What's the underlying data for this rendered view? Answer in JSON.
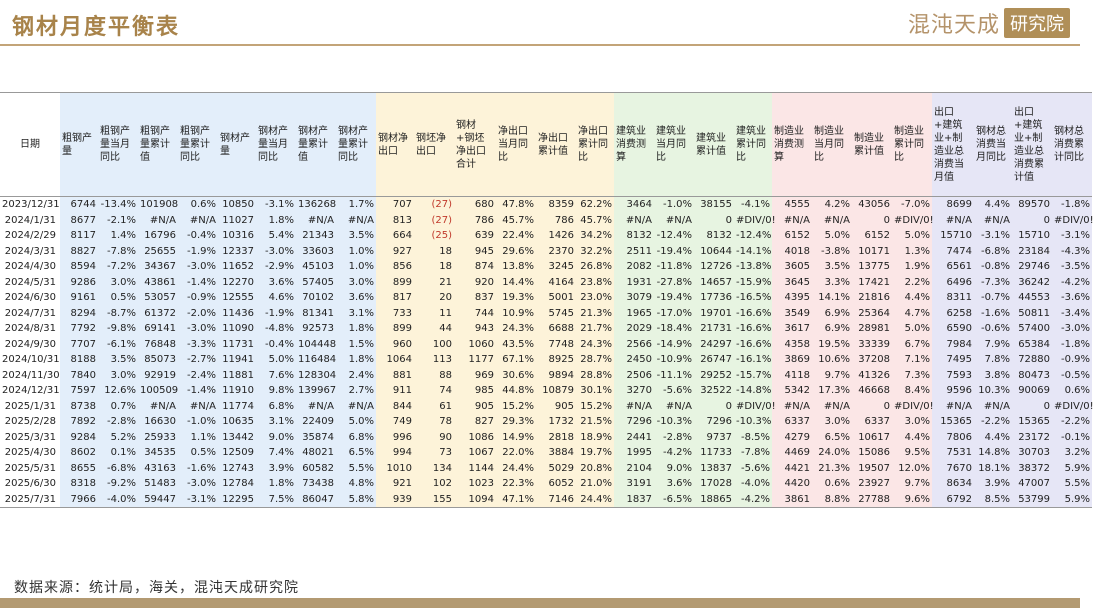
{
  "header": {
    "title": "钢材月度平衡表",
    "logo_text": "混沌天成",
    "logo_box": "研究院"
  },
  "columns": [
    {
      "label": "日期",
      "group": "date"
    },
    {
      "label": "粗钢产量",
      "group": "steel"
    },
    {
      "label": "粗钢产量当月同比",
      "group": "steel"
    },
    {
      "label": "粗钢产量累计值",
      "group": "steel"
    },
    {
      "label": "粗钢产量累计同比",
      "group": "steel"
    },
    {
      "label": "钢材产量",
      "group": "steel"
    },
    {
      "label": "钢材产量当月同比",
      "group": "steel"
    },
    {
      "label": "钢材产量累计值",
      "group": "steel"
    },
    {
      "label": "钢材产量累计同比",
      "group": "steel"
    },
    {
      "label": "钢材净出口",
      "group": "exp"
    },
    {
      "label": "钢坯净出口",
      "group": "exp"
    },
    {
      "label": "钢材+钢坯净出口合计",
      "group": "exp"
    },
    {
      "label": "净出口当月同比",
      "group": "exp"
    },
    {
      "label": "净出口累计值",
      "group": "exp"
    },
    {
      "label": "净出口累计同比",
      "group": "exp"
    },
    {
      "label": "建筑业消费测算",
      "group": "build"
    },
    {
      "label": "建筑业当月同比",
      "group": "build"
    },
    {
      "label": "建筑业累计值",
      "group": "build"
    },
    {
      "label": "建筑业累计同比",
      "group": "build"
    },
    {
      "label": "制造业消费测算",
      "group": "manu"
    },
    {
      "label": "制造业当月同比",
      "group": "manu"
    },
    {
      "label": "制造业累计值",
      "group": "manu"
    },
    {
      "label": "制造业累计同比",
      "group": "manu"
    },
    {
      "label": "出口+建筑业+制造业总消费当月值",
      "group": "tot"
    },
    {
      "label": "钢材总消费当月同比",
      "group": "tot"
    },
    {
      "label": "出口+建筑业+制造业总消费累计值",
      "group": "tot"
    },
    {
      "label": "钢材总消费累计同比",
      "group": "tot"
    }
  ],
  "rows": [
    [
      "2023/12/31",
      "6744",
      "-13.4%",
      "101908",
      "0.6%",
      "10850",
      "-3.1%",
      "136268",
      "1.7%",
      "707",
      "(27)",
      "680",
      "47.8%",
      "8359",
      "62.2%",
      "3464",
      "-1.0%",
      "38155",
      "-4.1%",
      "4555",
      "4.2%",
      "43056",
      "-7.0%",
      "8699",
      "4.4%",
      "89570",
      "-1.8%"
    ],
    [
      "2024/1/31",
      "8677",
      "-2.1%",
      "#N/A",
      "#N/A",
      "11027",
      "1.8%",
      "#N/A",
      "#N/A",
      "813",
      "(27)",
      "786",
      "45.7%",
      "786",
      "45.7%",
      "#N/A",
      "#N/A",
      "0",
      "#DIV/0!",
      "#N/A",
      "#N/A",
      "0",
      "#DIV/0!",
      "#N/A",
      "#N/A",
      "0",
      "#DIV/0!"
    ],
    [
      "2024/2/29",
      "8117",
      "1.4%",
      "16796",
      "-0.4%",
      "10316",
      "5.4%",
      "21343",
      "3.5%",
      "664",
      "(25)",
      "639",
      "22.4%",
      "1426",
      "34.2%",
      "8132",
      "-12.4%",
      "8132",
      "-12.4%",
      "6152",
      "5.0%",
      "6152",
      "5.0%",
      "15710",
      "-3.1%",
      "15710",
      "-3.1%"
    ],
    [
      "2024/3/31",
      "8827",
      "-7.8%",
      "25655",
      "-1.9%",
      "12337",
      "-3.0%",
      "33603",
      "1.0%",
      "927",
      "18",
      "945",
      "29.6%",
      "2370",
      "32.2%",
      "2511",
      "-19.4%",
      "10644",
      "-14.1%",
      "4018",
      "-3.8%",
      "10171",
      "1.3%",
      "7474",
      "-6.8%",
      "23184",
      "-4.3%"
    ],
    [
      "2024/4/30",
      "8594",
      "-7.2%",
      "34367",
      "-3.0%",
      "11652",
      "-2.9%",
      "45103",
      "1.0%",
      "856",
      "18",
      "874",
      "13.8%",
      "3245",
      "26.8%",
      "2082",
      "-11.8%",
      "12726",
      "-13.8%",
      "3605",
      "3.5%",
      "13775",
      "1.9%",
      "6561",
      "-0.8%",
      "29746",
      "-3.5%"
    ],
    [
      "2024/5/31",
      "9286",
      "3.0%",
      "43861",
      "-1.4%",
      "12270",
      "3.6%",
      "57405",
      "3.0%",
      "899",
      "21",
      "920",
      "14.4%",
      "4164",
      "23.8%",
      "1931",
      "-27.8%",
      "14657",
      "-15.9%",
      "3645",
      "3.3%",
      "17421",
      "2.2%",
      "6496",
      "-7.3%",
      "36242",
      "-4.2%"
    ],
    [
      "2024/6/30",
      "9161",
      "0.5%",
      "53057",
      "-0.9%",
      "12555",
      "4.6%",
      "70102",
      "3.6%",
      "817",
      "20",
      "837",
      "19.3%",
      "5001",
      "23.0%",
      "3079",
      "-19.4%",
      "17736",
      "-16.5%",
      "4395",
      "14.1%",
      "21816",
      "4.4%",
      "8311",
      "-0.7%",
      "44553",
      "-3.6%"
    ],
    [
      "2024/7/31",
      "8294",
      "-8.7%",
      "61372",
      "-2.0%",
      "11436",
      "-1.9%",
      "81341",
      "3.1%",
      "733",
      "11",
      "744",
      "10.9%",
      "5745",
      "21.3%",
      "1965",
      "-17.0%",
      "19701",
      "-16.6%",
      "3549",
      "6.9%",
      "25364",
      "4.7%",
      "6258",
      "-1.6%",
      "50811",
      "-3.4%"
    ],
    [
      "2024/8/31",
      "7792",
      "-9.8%",
      "69141",
      "-3.0%",
      "11090",
      "-4.8%",
      "92573",
      "1.8%",
      "899",
      "44",
      "943",
      "24.3%",
      "6688",
      "21.7%",
      "2029",
      "-18.4%",
      "21731",
      "-16.6%",
      "3617",
      "6.9%",
      "28981",
      "5.0%",
      "6590",
      "-0.6%",
      "57400",
      "-3.0%"
    ],
    [
      "2024/9/30",
      "7707",
      "-6.1%",
      "76848",
      "-3.3%",
      "11731",
      "-0.4%",
      "104448",
      "1.5%",
      "960",
      "100",
      "1060",
      "43.5%",
      "7748",
      "24.3%",
      "2566",
      "-14.9%",
      "24297",
      "-16.6%",
      "4358",
      "19.5%",
      "33339",
      "6.7%",
      "7984",
      "7.9%",
      "65384",
      "-1.8%"
    ],
    [
      "2024/10/31",
      "8188",
      "3.5%",
      "85073",
      "-2.7%",
      "11941",
      "5.0%",
      "116484",
      "1.8%",
      "1064",
      "113",
      "1177",
      "67.1%",
      "8925",
      "28.7%",
      "2450",
      "-10.9%",
      "26747",
      "-16.1%",
      "3869",
      "10.6%",
      "37208",
      "7.1%",
      "7495",
      "7.8%",
      "72880",
      "-0.9%"
    ],
    [
      "2024/11/30",
      "7840",
      "3.0%",
      "92919",
      "-2.4%",
      "11881",
      "7.6%",
      "128304",
      "2.4%",
      "881",
      "88",
      "969",
      "30.6%",
      "9894",
      "28.8%",
      "2506",
      "-11.1%",
      "29252",
      "-15.7%",
      "4118",
      "9.7%",
      "41326",
      "7.3%",
      "7593",
      "3.8%",
      "80473",
      "-0.5%"
    ],
    [
      "2024/12/31",
      "7597",
      "12.6%",
      "100509",
      "-1.4%",
      "11910",
      "9.8%",
      "139967",
      "2.7%",
      "911",
      "74",
      "985",
      "44.8%",
      "10879",
      "30.1%",
      "3270",
      "-5.6%",
      "32522",
      "-14.8%",
      "5342",
      "17.3%",
      "46668",
      "8.4%",
      "9596",
      "10.3%",
      "90069",
      "0.6%"
    ],
    [
      "2025/1/31",
      "8738",
      "0.7%",
      "#N/A",
      "#N/A",
      "11774",
      "6.8%",
      "#N/A",
      "#N/A",
      "844",
      "61",
      "905",
      "15.2%",
      "905",
      "15.2%",
      "#N/A",
      "#N/A",
      "0",
      "#DIV/0!",
      "#N/A",
      "#N/A",
      "0",
      "#DIV/0!",
      "#N/A",
      "#N/A",
      "0",
      "#DIV/0!"
    ],
    [
      "2025/2/28",
      "7892",
      "-2.8%",
      "16630",
      "-1.0%",
      "10635",
      "3.1%",
      "22409",
      "5.0%",
      "749",
      "78",
      "827",
      "29.3%",
      "1732",
      "21.5%",
      "7296",
      "-10.3%",
      "7296",
      "-10.3%",
      "6337",
      "3.0%",
      "6337",
      "3.0%",
      "15365",
      "-2.2%",
      "15365",
      "-2.2%"
    ],
    [
      "2025/3/31",
      "9284",
      "5.2%",
      "25933",
      "1.1%",
      "13442",
      "9.0%",
      "35874",
      "6.8%",
      "996",
      "90",
      "1086",
      "14.9%",
      "2818",
      "18.9%",
      "2441",
      "-2.8%",
      "9737",
      "-8.5%",
      "4279",
      "6.5%",
      "10617",
      "4.4%",
      "7806",
      "4.4%",
      "23172",
      "-0.1%"
    ],
    [
      "2025/4/30",
      "8602",
      "0.1%",
      "34535",
      "0.5%",
      "12509",
      "7.4%",
      "48021",
      "6.5%",
      "994",
      "73",
      "1067",
      "22.0%",
      "3884",
      "19.7%",
      "1995",
      "-4.2%",
      "11733",
      "-7.8%",
      "4469",
      "24.0%",
      "15086",
      "9.5%",
      "7531",
      "14.8%",
      "30703",
      "3.2%"
    ],
    [
      "2025/5/31",
      "8655",
      "-6.8%",
      "43163",
      "-1.6%",
      "12743",
      "3.9%",
      "60582",
      "5.5%",
      "1010",
      "134",
      "1144",
      "24.4%",
      "5029",
      "20.8%",
      "2104",
      "9.0%",
      "13837",
      "-5.6%",
      "4421",
      "21.3%",
      "19507",
      "12.0%",
      "7670",
      "18.1%",
      "38372",
      "5.9%"
    ],
    [
      "2025/6/30",
      "8318",
      "-9.2%",
      "51483",
      "-3.0%",
      "12784",
      "1.8%",
      "73438",
      "4.8%",
      "921",
      "102",
      "1023",
      "22.3%",
      "6052",
      "21.0%",
      "3191",
      "3.6%",
      "17028",
      "-4.0%",
      "4420",
      "0.6%",
      "23927",
      "9.7%",
      "8634",
      "3.9%",
      "47007",
      "5.5%"
    ],
    [
      "2025/7/31",
      "7966",
      "-4.0%",
      "59447",
      "-3.1%",
      "12295",
      "7.5%",
      "86047",
      "5.8%",
      "939",
      "155",
      "1094",
      "47.1%",
      "7146",
      "24.4%",
      "1837",
      "-6.5%",
      "18865",
      "-4.2%",
      "3861",
      "8.8%",
      "27788",
      "9.6%",
      "6792",
      "8.5%",
      "53799",
      "5.9%"
    ]
  ],
  "colors": {
    "steel": "#e3eefa",
    "exp": "#fdf3d9",
    "build": "#e7f4e1",
    "manu": "#fbe6e6",
    "tot": "#e6e6f6",
    "negative_paren": "#c0392b",
    "accent": "#b08f58"
  },
  "footer": {
    "source": "数据来源：统计局，海关，混沌天成研究院"
  }
}
